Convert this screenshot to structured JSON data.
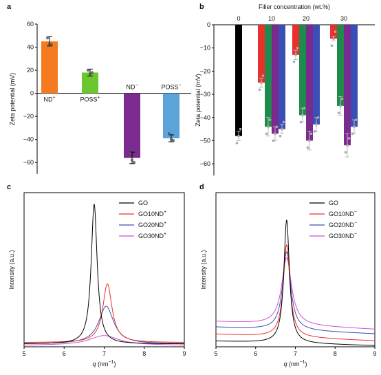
{
  "chart_data": [
    {
      "id": "a",
      "panel_label": "a",
      "type": "bar",
      "ylabel": "Zeta potential (mV)",
      "ylim": [
        -70,
        60
      ],
      "yticks": [
        60,
        40,
        20,
        0,
        -20,
        -40,
        -60
      ],
      "categories": [
        "ND+",
        "POSS+",
        "ND−",
        "POSS−"
      ],
      "bar_labels": [
        {
          "base": "ND",
          "sup": "+"
        },
        {
          "base": "POSS",
          "sup": "+"
        },
        {
          "base": "ND",
          "sup": "−"
        },
        {
          "base": "POSS",
          "sup": "−"
        }
      ],
      "values": [
        45,
        18,
        -56,
        -39
      ],
      "errors": [
        4,
        3,
        5,
        3
      ],
      "colors": [
        "#F47B20",
        "#6CC72E",
        "#7B2A8F",
        "#5BA3D9"
      ],
      "points": [
        [
          48,
          43,
          42
        ],
        [
          20,
          17,
          18
        ],
        [
          -52,
          -58,
          -60
        ],
        [
          -35,
          -40,
          -41
        ]
      ],
      "grid": false
    },
    {
      "id": "b",
      "panel_label": "b",
      "type": "bar",
      "title": "Filler concentration (wt.%)",
      "ylabel": "Zeta potential (mV)",
      "ylim": [
        -65,
        0
      ],
      "yticks": [
        0,
        -10,
        -20,
        -30,
        -40,
        -50,
        -60
      ],
      "groups": [
        "0",
        "10",
        "20",
        "30"
      ],
      "series": [
        {
          "color": "#000000",
          "values": [
            -48,
            null,
            null,
            null
          ]
        },
        {
          "color": "#E8312A",
          "values": [
            null,
            -25,
            -13,
            -6
          ]
        },
        {
          "color": "#1E8A4C",
          "values": [
            null,
            -44,
            -39,
            -35
          ]
        },
        {
          "color": "#7B2A8F",
          "values": [
            null,
            -47,
            -50,
            -52
          ]
        },
        {
          "color": "#3A4FB5",
          "values": [
            null,
            -45,
            -43,
            -44
          ]
        }
      ],
      "errors": [
        [
          2,
          null,
          null,
          null
        ],
        [
          null,
          2,
          2,
          1
        ],
        [
          null,
          4,
          3,
          4
        ],
        [
          null,
          3,
          4,
          5
        ],
        [
          null,
          2,
          3,
          3
        ]
      ],
      "grid": false
    },
    {
      "id": "c",
      "panel_label": "c",
      "type": "line",
      "xlabel": "q (nm⁻¹)",
      "xlabel_parts": {
        "var": "q",
        "unit": " (nm",
        "sup": "−1",
        "close": ")"
      },
      "ylabel": "Intensity (a.u.)",
      "xlim": [
        5,
        9
      ],
      "xticks": [
        5,
        6,
        7,
        8,
        9
      ],
      "ylim": [
        0,
        1.1
      ],
      "series": [
        {
          "name": "GO",
          "sup": "",
          "color": "#000000",
          "type": "lorentz",
          "center": 6.75,
          "width": 0.18,
          "amp": 1.0,
          "base": 0.02,
          "slope": 0.0
        },
        {
          "name": "GO10ND",
          "sup": "+",
          "color": "#E8312A",
          "type": "lorentz",
          "center": 7.08,
          "width": 0.28,
          "amp": 0.42,
          "base": 0.03,
          "slope": 0.0
        },
        {
          "name": "GO20ND",
          "sup": "+",
          "color": "#3A4FB5",
          "type": "lorentz",
          "center": 7.05,
          "width": 0.45,
          "amp": 0.27,
          "base": 0.02,
          "slope": 0.0
        },
        {
          "name": "GO30ND",
          "sup": "+",
          "color": "#D04FCF",
          "type": "lorentz",
          "center": 7.0,
          "width": 0.9,
          "amp": 0.07,
          "base": 0.01,
          "slope": 0.0
        }
      ],
      "legend": "top-right",
      "grid": false
    },
    {
      "id": "d",
      "panel_label": "d",
      "type": "line",
      "xlabel": "q (nm⁻¹)",
      "xlabel_parts": {
        "var": "q",
        "unit": " (nm",
        "sup": "−1",
        "close": ")"
      },
      "ylabel": "Intensity (a.u.)",
      "xlim": [
        5,
        9
      ],
      "xticks": [
        5,
        6,
        7,
        8,
        9
      ],
      "ylim": [
        0,
        1.1
      ],
      "series": [
        {
          "name": "GO",
          "sup": "",
          "color": "#000000",
          "type": "lorentz",
          "center": 6.78,
          "width": 0.17,
          "amp": 0.88,
          "base": 0.04,
          "slope": -0.008
        },
        {
          "name": "GO10ND",
          "sup": "−",
          "color": "#E8312A",
          "type": "lorentz",
          "center": 6.78,
          "width": 0.2,
          "amp": 0.66,
          "base": 0.09,
          "slope": -0.012
        },
        {
          "name": "GO20ND",
          "sup": "−",
          "color": "#3A4FB5",
          "type": "lorentz",
          "center": 6.78,
          "width": 0.24,
          "amp": 0.56,
          "base": 0.14,
          "slope": -0.012
        },
        {
          "name": "GO30ND",
          "sup": "−",
          "color": "#D04FCF",
          "type": "lorentz",
          "center": 6.78,
          "width": 0.3,
          "amp": 0.48,
          "base": 0.18,
          "slope": -0.014
        }
      ],
      "legend": "top-right",
      "grid": false
    }
  ]
}
